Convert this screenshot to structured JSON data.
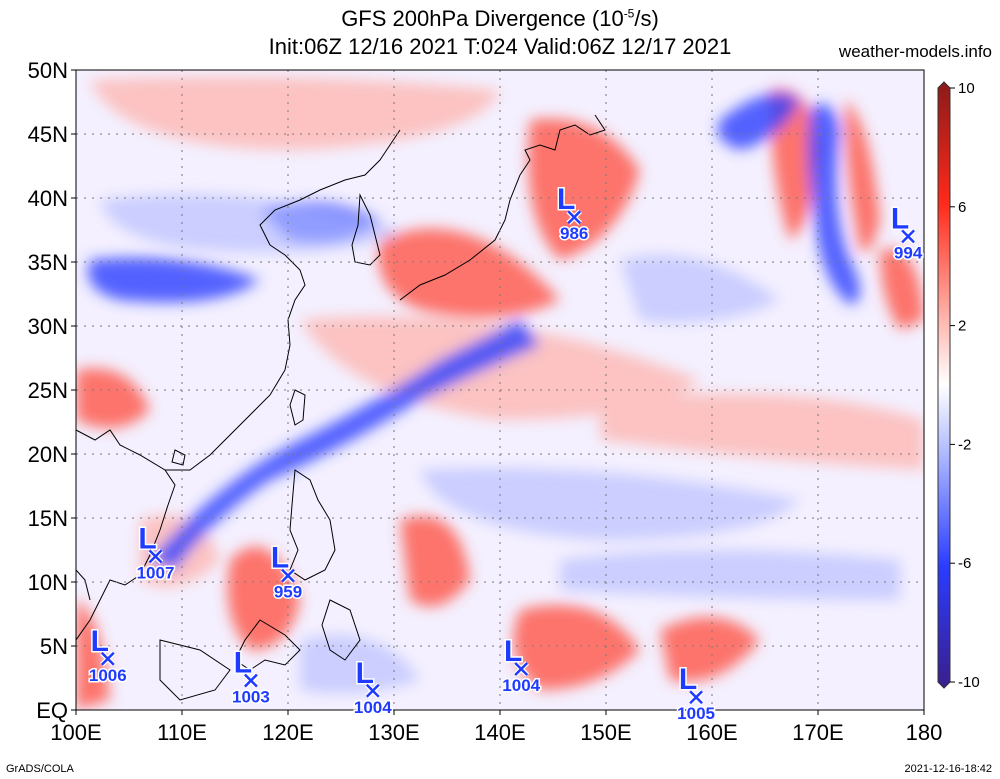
{
  "title": {
    "line1": "GFS 200hPa Divergence (10",
    "line1_sup": "-5",
    "line1_end": "/s)",
    "line2": "Init:06Z 12/16 2021 T:024 Valid:06Z 12/17 2021"
  },
  "source": "weather-models.info",
  "credit": "GrADS/COLA",
  "timestamp": "2021-12-16-18:42",
  "map": {
    "lon_range": [
      100,
      180
    ],
    "lat_range": [
      0,
      50
    ],
    "lon_labels": [
      "100E",
      "110E",
      "120E",
      "130E",
      "140E",
      "150E",
      "160E",
      "170E",
      "180"
    ],
    "lat_labels": [
      "EQ",
      "5N",
      "10N",
      "15N",
      "20N",
      "25N",
      "30N",
      "35N",
      "40N",
      "45N",
      "50N"
    ]
  },
  "colorbar": {
    "range": [
      -10,
      10
    ],
    "labels": [
      "10",
      "6",
      "2",
      "-2",
      "-6",
      "-10"
    ],
    "colors": {
      "max": "#8b1a1a",
      "pos": "#ff2a1a",
      "neg": "#2a3cff",
      "min": "#3b1f8c"
    }
  },
  "lows": [
    {
      "marker": "L",
      "pressure": "986",
      "lon": 147,
      "lat": 38.5
    },
    {
      "marker": "L",
      "pressure": "994",
      "lon": 178.5,
      "lat": 37
    },
    {
      "marker": "L",
      "pressure": "1007",
      "lon": 107.5,
      "lat": 12
    },
    {
      "marker": "L",
      "pressure": "959",
      "lon": 120,
      "lat": 10.5
    },
    {
      "marker": "L",
      "pressure": "1006",
      "lon": 103,
      "lat": 4
    },
    {
      "marker": "L",
      "pressure": "1003",
      "lon": 116.5,
      "lat": 2.3
    },
    {
      "marker": "L",
      "pressure": "1004",
      "lon": 128,
      "lat": 1.5
    },
    {
      "marker": "L",
      "pressure": "1004",
      "lon": 142,
      "lat": 3.2
    },
    {
      "marker": "L",
      "pressure": "1005",
      "lon": 158.5,
      "lat": 1
    }
  ]
}
